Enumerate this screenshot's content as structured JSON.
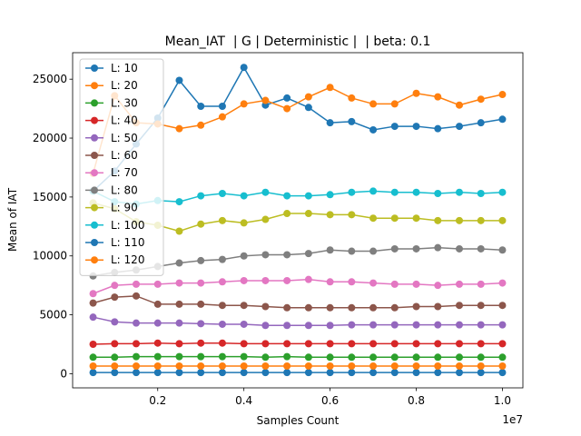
{
  "chart_data": {
    "type": "line",
    "title": "Mean_IAT  | G | Deterministic |  | beta: 0.1",
    "x_label": "Samples Count",
    "y_label": "Mean of IAT",
    "x_offset_label": "1e7",
    "x": [
      500000,
      1000000,
      1500000,
      2000000,
      2500000,
      3000000,
      3500000,
      4000000,
      4500000,
      5000000,
      5500000,
      6000000,
      6500000,
      7000000,
      7500000,
      8000000,
      8500000,
      9000000,
      9500000,
      10000000
    ],
    "xlim": [
      25000,
      10475000
    ],
    "xticks": [
      {
        "value": 2000000,
        "label": "0.2"
      },
      {
        "value": 4000000,
        "label": "0.4"
      },
      {
        "value": 6000000,
        "label": "0.6"
      },
      {
        "value": 8000000,
        "label": "0.8"
      },
      {
        "value": 10000000,
        "label": "1.0"
      }
    ],
    "ylim": [
      -1200,
      27250
    ],
    "yticks": [
      0,
      5000,
      10000,
      15000,
      20000,
      25000
    ],
    "legend": "upper left",
    "series": [
      {
        "name": "L: 10",
        "color": "#1f77b4",
        "values": [
          15500,
          17200,
          19500,
          21700,
          24900,
          22700,
          22700,
          26000,
          22800,
          23400,
          22600,
          21300,
          21400,
          20700,
          21000,
          21000,
          20800,
          21000,
          21300,
          21600
        ]
      },
      {
        "name": "L: 20",
        "color": "#ff7f0e",
        "values": [
          17000,
          23600,
          21300,
          21200,
          20800,
          21100,
          21800,
          22900,
          23200,
          22500,
          23500,
          24300,
          23400,
          22900,
          22900,
          23800,
          23500,
          22800,
          23300,
          23700
        ]
      },
      {
        "name": "L: 30",
        "color": "#2ca02c",
        "values": [
          1400,
          1400,
          1450,
          1450,
          1450,
          1450,
          1450,
          1450,
          1400,
          1450,
          1400,
          1400,
          1400,
          1400,
          1400,
          1400,
          1400,
          1400,
          1400,
          1400
        ]
      },
      {
        "name": "L: 40",
        "color": "#d62728",
        "values": [
          2500,
          2550,
          2550,
          2600,
          2550,
          2600,
          2600,
          2550,
          2550,
          2550,
          2550,
          2550,
          2550,
          2550,
          2550,
          2550,
          2550,
          2550,
          2550,
          2550
        ]
      },
      {
        "name": "L: 50",
        "color": "#9467bd",
        "values": [
          4800,
          4400,
          4300,
          4300,
          4300,
          4250,
          4200,
          4200,
          4100,
          4100,
          4100,
          4100,
          4150,
          4150,
          4150,
          4150,
          4150,
          4150,
          4150,
          4150
        ]
      },
      {
        "name": "L: 60",
        "color": "#8c564b",
        "values": [
          6000,
          6500,
          6600,
          5900,
          5900,
          5900,
          5800,
          5800,
          5700,
          5600,
          5600,
          5600,
          5600,
          5600,
          5600,
          5700,
          5700,
          5800,
          5800,
          5800
        ]
      },
      {
        "name": "L: 70",
        "color": "#e377c2",
        "values": [
          6800,
          7500,
          7600,
          7600,
          7700,
          7700,
          7800,
          7900,
          7900,
          7900,
          8000,
          7800,
          7800,
          7700,
          7600,
          7600,
          7500,
          7600,
          7600,
          7700
        ]
      },
      {
        "name": "L: 80",
        "color": "#7f7f7f",
        "values": [
          8300,
          8600,
          8800,
          9100,
          9400,
          9600,
          9700,
          10000,
          10100,
          10100,
          10200,
          10500,
          10400,
          10400,
          10600,
          10600,
          10700,
          10600,
          10600,
          10500
        ]
      },
      {
        "name": "L: 90",
        "color": "#bcbd22",
        "values": [
          14500,
          14000,
          12900,
          12600,
          12100,
          12700,
          13000,
          12800,
          13100,
          13600,
          13600,
          13500,
          13500,
          13200,
          13200,
          13200,
          13000,
          13000,
          13000,
          13000
        ]
      },
      {
        "name": "L: 100",
        "color": "#17becf",
        "values": [
          15500,
          14600,
          14400,
          14700,
          14600,
          15100,
          15300,
          15100,
          15400,
          15100,
          15100,
          15200,
          15400,
          15500,
          15400,
          15400,
          15300,
          15400,
          15300,
          15400
        ]
      },
      {
        "name": "L: 110",
        "color": "#1f77b4",
        "values": [
          100,
          100,
          100,
          100,
          100,
          100,
          100,
          100,
          100,
          100,
          100,
          100,
          100,
          100,
          100,
          100,
          100,
          100,
          100,
          100
        ]
      },
      {
        "name": "L: 120",
        "color": "#ff7f0e",
        "values": [
          650,
          650,
          650,
          650,
          650,
          650,
          650,
          650,
          650,
          650,
          650,
          650,
          650,
          650,
          650,
          650,
          650,
          650,
          650,
          650
        ]
      }
    ]
  }
}
